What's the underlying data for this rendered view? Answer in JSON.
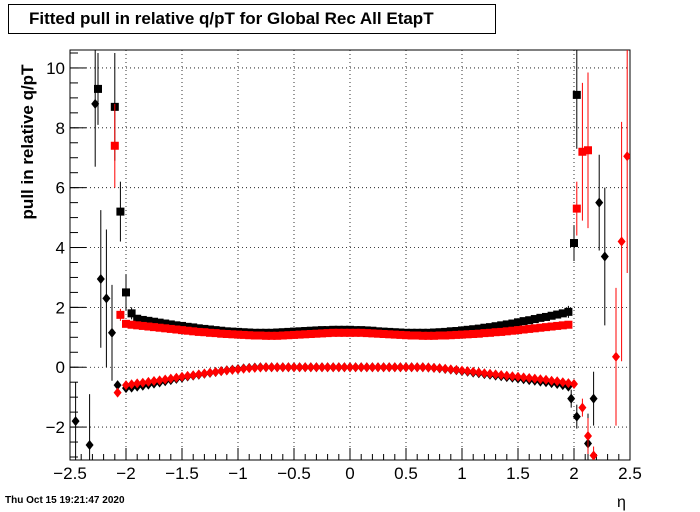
{
  "title": "Fitted pull in relative q/pT for Global Rec All EtapT",
  "timestamp": "Thu Oct 15 19:21:47 2020",
  "chart_data": {
    "type": "scatter",
    "title": "Fitted pull in relative q/pT for Global Rec All EtapT",
    "xlabel": "η",
    "ylabel": "pull in relative q/pT",
    "xlim": [
      -2.5,
      2.5
    ],
    "ylim": [
      -3.1,
      10.6
    ],
    "xticks": [
      -2.5,
      -2,
      -1.5,
      -1,
      -0.5,
      0,
      0.5,
      1,
      1.5,
      2,
      2.5
    ],
    "xtick_labels": [
      "−2.5",
      "−2",
      "−1.5",
      "−1",
      "−0.5",
      "0",
      "0.5",
      "1",
      "1.5",
      "2",
      "2.5"
    ],
    "yticks": [
      -2,
      0,
      2,
      4,
      6,
      8,
      10
    ],
    "ytick_labels": [
      "−2",
      "0",
      "2",
      "4",
      "6",
      "8",
      "10"
    ],
    "grid": true,
    "series": [
      {
        "marker": "square",
        "color": "#000000",
        "x": [
          -2.25,
          -2.1,
          -2.05,
          -2.0,
          -1.95,
          1.95,
          2.0,
          2.025
        ],
        "y": [
          9.3,
          8.7,
          5.2,
          2.5,
          1.8,
          1.85,
          4.15,
          9.1
        ],
        "err": [
          1.2,
          1.8,
          1.0,
          0.6,
          0.2,
          0.2,
          0.6,
          1.8
        ]
      },
      {
        "marker": "square",
        "color": "#ff0000",
        "x": [
          -2.1,
          -2.05,
          2.025,
          2.075,
          2.125
        ],
        "y": [
          7.4,
          1.75,
          5.3,
          7.2,
          7.25
        ],
        "err": [
          1.4,
          0.2,
          0.9,
          2.3,
          2.6
        ]
      },
      {
        "marker": "diamond",
        "color": "#000000",
        "x": [
          -2.45,
          -2.325,
          -2.275,
          -2.225,
          -2.175,
          -2.125,
          -2.075,
          1.975,
          2.025,
          2.125,
          2.175,
          2.225,
          2.275
        ],
        "y": [
          -1.8,
          -2.6,
          8.8,
          2.95,
          2.3,
          1.15,
          -0.6,
          -1.05,
          -1.65,
          -2.55,
          -1.05,
          5.5,
          3.7
        ],
        "err": [
          1.3,
          1.7,
          2.1,
          2.3,
          2.3,
          1.6,
          0.1,
          0.3,
          0.4,
          1.0,
          0.9,
          1.6,
          2.3
        ]
      },
      {
        "marker": "diamond",
        "color": "#ff0000",
        "x": [
          -2.075,
          2.075,
          2.125,
          2.175,
          2.375,
          2.425,
          2.475
        ],
        "y": [
          -0.85,
          -1.35,
          -2.3,
          -2.95,
          0.35,
          4.2,
          7.05
        ],
        "err": [
          0.1,
          0.3,
          0.6,
          0.3,
          2.3,
          4.0,
          3.9
        ]
      },
      {
        "name": "",
        "marker": "square-band",
        "color": "#000000",
        "note_values": "smooth band of points every 0.05 in eta",
        "x": [
          -1.9,
          -1.85,
          -1.8,
          -1.75,
          -1.7,
          -1.65,
          -1.6,
          -1.55,
          -1.5,
          -1.45,
          -1.4,
          -1.35,
          -1.3,
          -1.25,
          -1.2,
          -1.15,
          -1.1,
          -1.05,
          -1.0,
          -0.95,
          -0.9,
          -0.85,
          -0.8,
          -0.75,
          -0.7,
          -0.65,
          -0.6,
          -0.55,
          -0.5,
          -0.45,
          -0.4,
          -0.35,
          -0.3,
          -0.25,
          -0.2,
          -0.15,
          -0.1,
          -0.05,
          0.0,
          0.05,
          0.1,
          0.15,
          0.2,
          0.25,
          0.3,
          0.35,
          0.4,
          0.45,
          0.5,
          0.55,
          0.6,
          0.65,
          0.7,
          0.75,
          0.8,
          0.85,
          0.9,
          0.95,
          1.0,
          1.05,
          1.1,
          1.15,
          1.2,
          1.25,
          1.3,
          1.35,
          1.4,
          1.45,
          1.5,
          1.55,
          1.6,
          1.65,
          1.7,
          1.75,
          1.8,
          1.85,
          1.9
        ],
        "y": [
          1.62,
          1.58,
          1.55,
          1.52,
          1.49,
          1.46,
          1.43,
          1.4,
          1.38,
          1.35,
          1.33,
          1.3,
          1.28,
          1.26,
          1.24,
          1.22,
          1.2,
          1.19,
          1.18,
          1.17,
          1.16,
          1.15,
          1.15,
          1.15,
          1.15,
          1.16,
          1.17,
          1.18,
          1.19,
          1.2,
          1.21,
          1.22,
          1.23,
          1.24,
          1.24,
          1.25,
          1.25,
          1.25,
          1.25,
          1.24,
          1.24,
          1.23,
          1.22,
          1.2,
          1.19,
          1.18,
          1.17,
          1.16,
          1.15,
          1.15,
          1.15,
          1.15,
          1.15,
          1.16,
          1.17,
          1.18,
          1.2,
          1.21,
          1.23,
          1.25,
          1.27,
          1.29,
          1.32,
          1.34,
          1.37,
          1.4,
          1.43,
          1.46,
          1.5,
          1.54,
          1.57,
          1.61,
          1.65,
          1.68,
          1.72,
          1.76,
          1.8
        ],
        "err": [
          0.03
        ]
      },
      {
        "name": "",
        "marker": "square-band",
        "color": "#ff0000",
        "x": [
          -2.0,
          -1.95,
          -1.9,
          -1.85,
          -1.8,
          -1.75,
          -1.7,
          -1.65,
          -1.6,
          -1.55,
          -1.5,
          -1.45,
          -1.4,
          -1.35,
          -1.3,
          -1.25,
          -1.2,
          -1.15,
          -1.1,
          -1.05,
          -1.0,
          -0.95,
          -0.9,
          -0.85,
          -0.8,
          -0.75,
          -0.7,
          -0.65,
          -0.6,
          -0.55,
          -0.5,
          -0.45,
          -0.4,
          -0.35,
          -0.3,
          -0.25,
          -0.2,
          -0.15,
          -0.1,
          -0.05,
          0.0,
          0.05,
          0.1,
          0.15,
          0.2,
          0.25,
          0.3,
          0.35,
          0.4,
          0.45,
          0.5,
          0.55,
          0.6,
          0.65,
          0.7,
          0.75,
          0.8,
          0.85,
          0.9,
          0.95,
          1.0,
          1.05,
          1.1,
          1.15,
          1.2,
          1.25,
          1.3,
          1.35,
          1.4,
          1.45,
          1.5,
          1.55,
          1.6,
          1.65,
          1.7,
          1.75,
          1.8,
          1.85,
          1.9,
          1.95
        ],
        "y": [
          1.45,
          1.42,
          1.4,
          1.38,
          1.36,
          1.34,
          1.32,
          1.3,
          1.28,
          1.26,
          1.24,
          1.22,
          1.2,
          1.18,
          1.17,
          1.15,
          1.14,
          1.12,
          1.11,
          1.1,
          1.09,
          1.08,
          1.07,
          1.06,
          1.06,
          1.05,
          1.05,
          1.05,
          1.06,
          1.07,
          1.08,
          1.09,
          1.1,
          1.11,
          1.12,
          1.13,
          1.14,
          1.15,
          1.15,
          1.15,
          1.15,
          1.15,
          1.15,
          1.14,
          1.13,
          1.12,
          1.11,
          1.1,
          1.09,
          1.08,
          1.07,
          1.06,
          1.06,
          1.05,
          1.05,
          1.05,
          1.06,
          1.06,
          1.07,
          1.08,
          1.09,
          1.1,
          1.11,
          1.12,
          1.14,
          1.15,
          1.17,
          1.18,
          1.2,
          1.22,
          1.24,
          1.26,
          1.28,
          1.3,
          1.32,
          1.34,
          1.36,
          1.38,
          1.4,
          1.42
        ],
        "err": [
          0.03
        ]
      },
      {
        "name": "",
        "marker": "diamond-band",
        "color": "#000000",
        "x": [
          -2.0,
          -1.95,
          -1.9,
          -1.85,
          -1.8,
          -1.75,
          -1.7,
          -1.65,
          -1.6,
          -1.55,
          -1.5,
          -1.45,
          -1.4,
          -1.35,
          -1.3,
          -1.25,
          -1.2,
          -1.15,
          -1.1,
          -1.05,
          -1.0,
          -0.95,
          -0.9,
          -0.85,
          -0.8,
          -0.75,
          -0.7,
          -0.65,
          -0.6,
          -0.55,
          -0.5,
          -0.45,
          -0.4,
          -0.35,
          -0.3,
          -0.25,
          -0.2,
          -0.15,
          -0.1,
          -0.05,
          0.0,
          0.05,
          0.1,
          0.15,
          0.2,
          0.25,
          0.3,
          0.35,
          0.4,
          0.45,
          0.5,
          0.55,
          0.6,
          0.65,
          0.7,
          0.75,
          0.8,
          0.85,
          0.9,
          0.95,
          1.0,
          1.05,
          1.1,
          1.15,
          1.2,
          1.25,
          1.3,
          1.35,
          1.4,
          1.45,
          1.5,
          1.55,
          1.6,
          1.65,
          1.7,
          1.75,
          1.8,
          1.85,
          1.9,
          1.95
        ],
        "y": [
          -0.7,
          -0.68,
          -0.65,
          -0.62,
          -0.58,
          -0.55,
          -0.51,
          -0.47,
          -0.43,
          -0.39,
          -0.35,
          -0.31,
          -0.28,
          -0.25,
          -0.22,
          -0.19,
          -0.16,
          -0.13,
          -0.1,
          -0.08,
          -0.06,
          -0.04,
          -0.02,
          -0.01,
          0.0,
          0.0,
          0.0,
          0.0,
          0.0,
          0.0,
          0.0,
          0.0,
          0.0,
          0.0,
          0.0,
          0.0,
          0.0,
          0.0,
          0.0,
          0.0,
          0.0,
          0.0,
          0.0,
          0.0,
          0.0,
          0.0,
          0.0,
          0.0,
          0.0,
          0.0,
          0.0,
          0.0,
          0.0,
          0.0,
          -0.01,
          -0.02,
          -0.04,
          -0.06,
          -0.08,
          -0.1,
          -0.13,
          -0.15,
          -0.18,
          -0.2,
          -0.23,
          -0.25,
          -0.28,
          -0.3,
          -0.33,
          -0.35,
          -0.38,
          -0.4,
          -0.43,
          -0.45,
          -0.48,
          -0.5,
          -0.53,
          -0.56,
          -0.6,
          -0.65
        ],
        "err": [
          0.03
        ]
      },
      {
        "name": "",
        "marker": "diamond-band",
        "color": "#ff0000",
        "x": [
          -2.0,
          -1.95,
          -1.9,
          -1.85,
          -1.8,
          -1.75,
          -1.7,
          -1.65,
          -1.6,
          -1.55,
          -1.5,
          -1.45,
          -1.4,
          -1.35,
          -1.3,
          -1.25,
          -1.2,
          -1.15,
          -1.1,
          -1.05,
          -1.0,
          -0.95,
          -0.9,
          -0.85,
          -0.8,
          -0.75,
          -0.7,
          -0.65,
          -0.6,
          -0.55,
          -0.5,
          -0.45,
          -0.4,
          -0.35,
          -0.3,
          -0.25,
          -0.2,
          -0.15,
          -0.1,
          -0.05,
          0.0,
          0.05,
          0.1,
          0.15,
          0.2,
          0.25,
          0.3,
          0.35,
          0.4,
          0.45,
          0.5,
          0.55,
          0.6,
          0.65,
          0.7,
          0.75,
          0.8,
          0.85,
          0.9,
          0.95,
          1.0,
          1.05,
          1.1,
          1.15,
          1.2,
          1.25,
          1.3,
          1.35,
          1.4,
          1.45,
          1.5,
          1.55,
          1.6,
          1.65,
          1.7,
          1.75,
          1.8,
          1.85,
          1.9,
          1.95,
          2.0
        ],
        "y": [
          -0.6,
          -0.57,
          -0.54,
          -0.52,
          -0.49,
          -0.46,
          -0.44,
          -0.41,
          -0.38,
          -0.35,
          -0.32,
          -0.29,
          -0.27,
          -0.24,
          -0.21,
          -0.18,
          -0.16,
          -0.13,
          -0.11,
          -0.09,
          -0.07,
          -0.05,
          -0.03,
          -0.02,
          -0.01,
          0.0,
          0.0,
          0.0,
          0.0,
          0.0,
          0.0,
          0.0,
          0.0,
          0.0,
          0.0,
          0.0,
          0.0,
          0.0,
          0.0,
          0.0,
          0.0,
          0.0,
          0.0,
          0.0,
          0.0,
          0.0,
          0.0,
          0.0,
          0.0,
          0.0,
          0.0,
          0.0,
          0.0,
          0.0,
          -0.01,
          -0.02,
          -0.03,
          -0.05,
          -0.07,
          -0.09,
          -0.11,
          -0.13,
          -0.15,
          -0.17,
          -0.2,
          -0.22,
          -0.24,
          -0.26,
          -0.28,
          -0.3,
          -0.32,
          -0.34,
          -0.36,
          -0.38,
          -0.4,
          -0.42,
          -0.45,
          -0.47,
          -0.5,
          -0.53,
          -0.56
        ],
        "err": [
          0.03
        ]
      }
    ]
  }
}
